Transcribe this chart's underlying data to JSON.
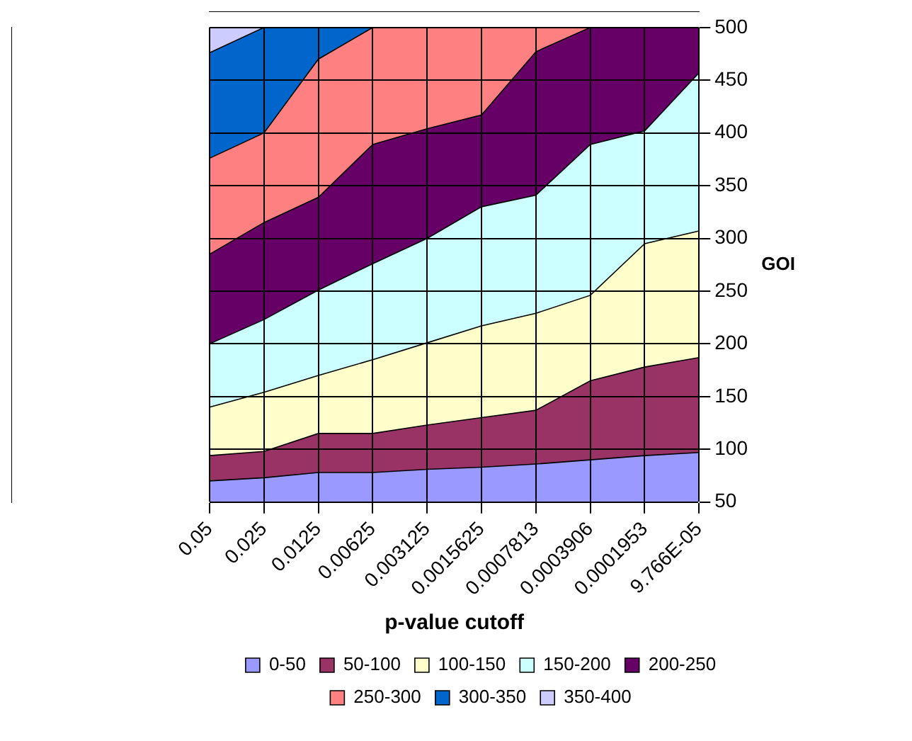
{
  "chart_data": {
    "type": "area",
    "xlabel": "p-value cutoff",
    "ylabel": "GOI",
    "categories": [
      "0.05",
      "0.025",
      "0.0125",
      "0.00625",
      "0.003125",
      "0.0015625",
      "0.0007813",
      "0.0003906",
      "0.0001953",
      "9.766E-05"
    ],
    "ylim": [
      50,
      500
    ],
    "yticks": [
      50,
      100,
      150,
      200,
      250,
      300,
      350,
      400,
      450,
      500
    ],
    "grid": true,
    "legend": "bottom",
    "series": [
      {
        "name": "0-50",
        "color": "#9999ff",
        "values": [
          70,
          73,
          78,
          78,
          81,
          83,
          86,
          90,
          94,
          97
        ]
      },
      {
        "name": "50-100",
        "color": "#993366",
        "values": [
          94,
          98,
          115,
          115,
          123,
          130,
          137,
          165,
          178,
          187
        ]
      },
      {
        "name": "100-150",
        "color": "#ffffcc",
        "values": [
          140,
          154,
          170,
          185,
          201,
          217,
          229,
          246,
          295,
          307
        ]
      },
      {
        "name": "150-200",
        "color": "#ccffff",
        "values": [
          200,
          223,
          251,
          276,
          300,
          330,
          341,
          389,
          402,
          457
        ]
      },
      {
        "name": "200-250",
        "color": "#660066",
        "values": [
          285,
          315,
          339,
          389,
          404,
          417,
          477,
          500,
          500,
          500
        ]
      },
      {
        "name": "250-300",
        "color": "#ff8080",
        "values": [
          376,
          400,
          470,
          500,
          500,
          500,
          500,
          500,
          500,
          500
        ]
      },
      {
        "name": "300-350",
        "color": "#0066cc",
        "values": [
          476,
          500,
          500,
          500,
          500,
          500,
          500,
          500,
          500,
          500
        ]
      },
      {
        "name": "350-400",
        "color": "#ccccff",
        "values": [
          500,
          500,
          500,
          500,
          500,
          500,
          500,
          500,
          500,
          500
        ]
      }
    ]
  }
}
